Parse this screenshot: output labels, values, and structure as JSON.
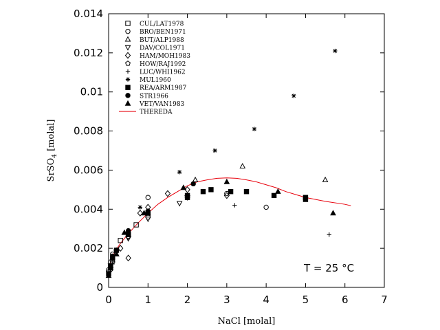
{
  "chart_data": {
    "type": "scatter",
    "xlabel": "NaCl [molal]",
    "ylabel_main": "SrSO",
    "ylabel_sub": "4",
    "ylabel_unit": " [molal]",
    "xlim": [
      0,
      7
    ],
    "ylim": [
      0,
      0.014
    ],
    "x_ticks": [
      0,
      1,
      2,
      3,
      4,
      5,
      6,
      7
    ],
    "x_tick_labels": [
      "0",
      "1",
      "2",
      "3",
      "4",
      "5",
      "6",
      "7"
    ],
    "y_ticks": [
      0,
      0.002,
      0.004,
      0.006,
      0.008,
      0.01,
      0.012,
      0.014
    ],
    "y_tick_labels": [
      "0",
      "0.002",
      "0.004",
      "0.006",
      "0.008",
      "0.01",
      "0.012",
      "0.014"
    ],
    "grid": false,
    "legend_position": "top-left",
    "annotation": "T = 25 °C",
    "series": [
      {
        "name": "CUL/LAT1978",
        "marker": "square-open",
        "points": [
          [
            0.05,
            0.0011
          ],
          [
            0.1,
            0.0015
          ],
          [
            0.3,
            0.0024
          ],
          [
            0.5,
            0.0027
          ],
          [
            0.7,
            0.0032
          ],
          [
            1.0,
            0.0038
          ]
        ]
      },
      {
        "name": "BRO/BEN1971",
        "marker": "circle-open",
        "points": [
          [
            0.0,
            0.0009
          ],
          [
            0.05,
            0.0013
          ],
          [
            0.1,
            0.0017
          ],
          [
            0.5,
            0.0028
          ],
          [
            1.0,
            0.0036
          ],
          [
            1.0,
            0.0046
          ],
          [
            3.0,
            0.0048
          ],
          [
            4.0,
            0.0041
          ]
        ]
      },
      {
        "name": "BUT/ALP1988",
        "marker": "triangle-up-open",
        "points": [
          [
            1.0,
            0.0038
          ],
          [
            2.2,
            0.0055
          ],
          [
            3.4,
            0.0062
          ],
          [
            5.5,
            0.0055
          ]
        ]
      },
      {
        "name": "DAV/COL1971",
        "marker": "triangle-down-open",
        "points": [
          [
            0.05,
            0.0011
          ],
          [
            0.2,
            0.0018
          ],
          [
            0.5,
            0.0025
          ],
          [
            1.0,
            0.0035
          ],
          [
            1.8,
            0.0043
          ],
          [
            2.0,
            0.0046
          ]
        ]
      },
      {
        "name": "HAM/MOH1983",
        "marker": "diamond-open",
        "points": [
          [
            0.05,
            0.0009
          ],
          [
            0.1,
            0.0013
          ],
          [
            0.3,
            0.002
          ],
          [
            0.5,
            0.0026
          ],
          [
            0.5,
            0.0015
          ],
          [
            0.8,
            0.0038
          ],
          [
            1.0,
            0.0041
          ],
          [
            1.5,
            0.0048
          ],
          [
            2.0,
            0.005
          ],
          [
            3.0,
            0.0047
          ]
        ]
      },
      {
        "name": "HOW/RAJ1992",
        "marker": "pentagon-open",
        "points": [
          [
            0.0,
            0.0008
          ],
          [
            0.1,
            0.0014
          ],
          [
            0.2,
            0.0019
          ],
          [
            0.5,
            0.0026
          ]
        ]
      },
      {
        "name": "LUC/WHI1962",
        "marker": "plus",
        "points": [
          [
            0.0,
            0.0007
          ],
          [
            0.1,
            0.0012
          ],
          [
            3.2,
            0.0042
          ],
          [
            5.6,
            0.0027
          ]
        ]
      },
      {
        "name": "MUL1960",
        "marker": "asterisk",
        "points": [
          [
            0.8,
            0.0041
          ],
          [
            1.8,
            0.0059
          ],
          [
            2.7,
            0.007
          ],
          [
            3.7,
            0.0081
          ],
          [
            4.7,
            0.0098
          ],
          [
            5.75,
            0.0121
          ]
        ]
      },
      {
        "name": "REA/ARM1987",
        "marker": "square-filled",
        "points": [
          [
            0.0,
            0.0007
          ],
          [
            0.05,
            0.001
          ],
          [
            0.1,
            0.0015
          ],
          [
            0.2,
            0.0019
          ],
          [
            0.5,
            0.0027
          ],
          [
            1.0,
            0.0038
          ],
          [
            2.0,
            0.0046
          ],
          [
            2.0,
            0.0047
          ],
          [
            2.4,
            0.0049
          ],
          [
            2.6,
            0.005
          ],
          [
            3.1,
            0.0049
          ],
          [
            3.5,
            0.0049
          ],
          [
            4.2,
            0.0047
          ],
          [
            5.0,
            0.0045
          ],
          [
            5.0,
            0.0046
          ]
        ]
      },
      {
        "name": "STR1966",
        "marker": "circle-filled",
        "points": [
          [
            0.05,
            0.0011
          ],
          [
            0.1,
            0.0016
          ],
          [
            0.5,
            0.0029
          ],
          [
            1.0,
            0.0039
          ],
          [
            2.0,
            0.0046
          ],
          [
            2.15,
            0.0053
          ]
        ]
      },
      {
        "name": "VET/VAN1983",
        "marker": "triangle-up-filled",
        "points": [
          [
            0.0,
            0.0006
          ],
          [
            0.05,
            0.0011
          ],
          [
            0.2,
            0.0017
          ],
          [
            0.4,
            0.0028
          ],
          [
            0.5,
            0.0027
          ],
          [
            0.9,
            0.0038
          ],
          [
            1.9,
            0.0051
          ],
          [
            3.0,
            0.0054
          ],
          [
            4.3,
            0.0049
          ],
          [
            5.7,
            0.0038
          ]
        ]
      }
    ],
    "model": {
      "name": "THEREDA",
      "color": "#e8000b",
      "points": [
        [
          0.0,
          0.00095
        ],
        [
          0.1,
          0.0016
        ],
        [
          0.2,
          0.00195
        ],
        [
          0.3,
          0.00225
        ],
        [
          0.5,
          0.00275
        ],
        [
          0.75,
          0.0033
        ],
        [
          1.0,
          0.0038
        ],
        [
          1.25,
          0.00425
        ],
        [
          1.5,
          0.0046
        ],
        [
          1.75,
          0.0049
        ],
        [
          2.0,
          0.0052
        ],
        [
          2.25,
          0.0054
        ],
        [
          2.5,
          0.0055
        ],
        [
          2.75,
          0.00558
        ],
        [
          3.0,
          0.0056
        ],
        [
          3.25,
          0.00558
        ],
        [
          3.5,
          0.0055
        ],
        [
          3.75,
          0.0054
        ],
        [
          4.0,
          0.00525
        ],
        [
          4.25,
          0.0051
        ],
        [
          4.5,
          0.0049
        ],
        [
          4.75,
          0.00475
        ],
        [
          5.0,
          0.0046
        ],
        [
          5.5,
          0.0044
        ],
        [
          6.0,
          0.00425
        ],
        [
          6.15,
          0.00418
        ]
      ]
    }
  }
}
